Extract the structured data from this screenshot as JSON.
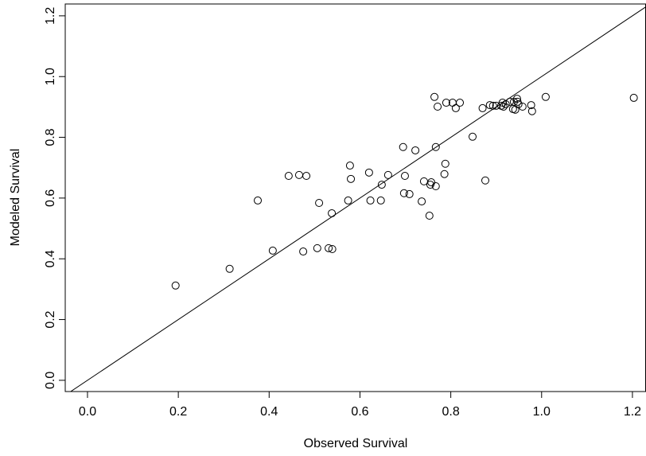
{
  "chart_data": {
    "type": "scatter",
    "x_label": "Observed Survival",
    "y_label": "Modeled Survival",
    "x": [
      0.194,
      0.313,
      0.375,
      0.408,
      0.443,
      0.466,
      0.475,
      0.506,
      0.51,
      0.482,
      0.531,
      0.539,
      0.538,
      0.574,
      0.578,
      0.58,
      0.62,
      0.623,
      0.646,
      0.648,
      0.662,
      0.695,
      0.697,
      0.699,
      0.709,
      0.722,
      0.736,
      0.741,
      0.753,
      0.755,
      0.757,
      0.767,
      0.767,
      0.764,
      0.771,
      0.788,
      0.786,
      0.79,
      0.804,
      0.811,
      0.82,
      0.848,
      0.87,
      0.876,
      0.886,
      0.893,
      0.9,
      0.911,
      0.914,
      0.916,
      0.921,
      0.93,
      0.937,
      0.939,
      0.942,
      0.946,
      0.947,
      0.949,
      0.958,
      0.977,
      0.979,
      1.009,
      1.203
    ],
    "values": [
      0.312,
      0.367,
      0.592,
      0.427,
      0.673,
      0.676,
      0.424,
      0.435,
      0.584,
      0.673,
      0.435,
      0.432,
      0.55,
      0.592,
      0.707,
      0.663,
      0.684,
      0.592,
      0.592,
      0.644,
      0.676,
      0.768,
      0.616,
      0.673,
      0.613,
      0.757,
      0.589,
      0.655,
      0.542,
      0.644,
      0.652,
      0.639,
      0.768,
      0.933,
      0.901,
      0.713,
      0.679,
      0.914,
      0.914,
      0.896,
      0.914,
      0.802,
      0.896,
      0.658,
      0.906,
      0.904,
      0.904,
      0.904,
      0.914,
      0.901,
      0.909,
      0.917,
      0.893,
      0.917,
      0.891,
      0.927,
      0.917,
      0.909,
      0.901,
      0.906,
      0.886,
      0.933,
      0.93
    ],
    "color": "#000000",
    "xlim": [
      -0.049,
      1.229
    ],
    "ylim": [
      -0.037,
      1.239
    ],
    "xticks": [
      {
        "value": 0,
        "label": "0.0"
      },
      0.2,
      0.4,
      0.6,
      0.8,
      {
        "value": 1,
        "label": "1.0"
      },
      1.2
    ],
    "yticks": [
      {
        "value": 0,
        "label": "0.0"
      },
      0.2,
      0.4,
      0.6,
      0.8,
      {
        "value": 1,
        "label": "1.0"
      },
      1.2
    ]
  }
}
